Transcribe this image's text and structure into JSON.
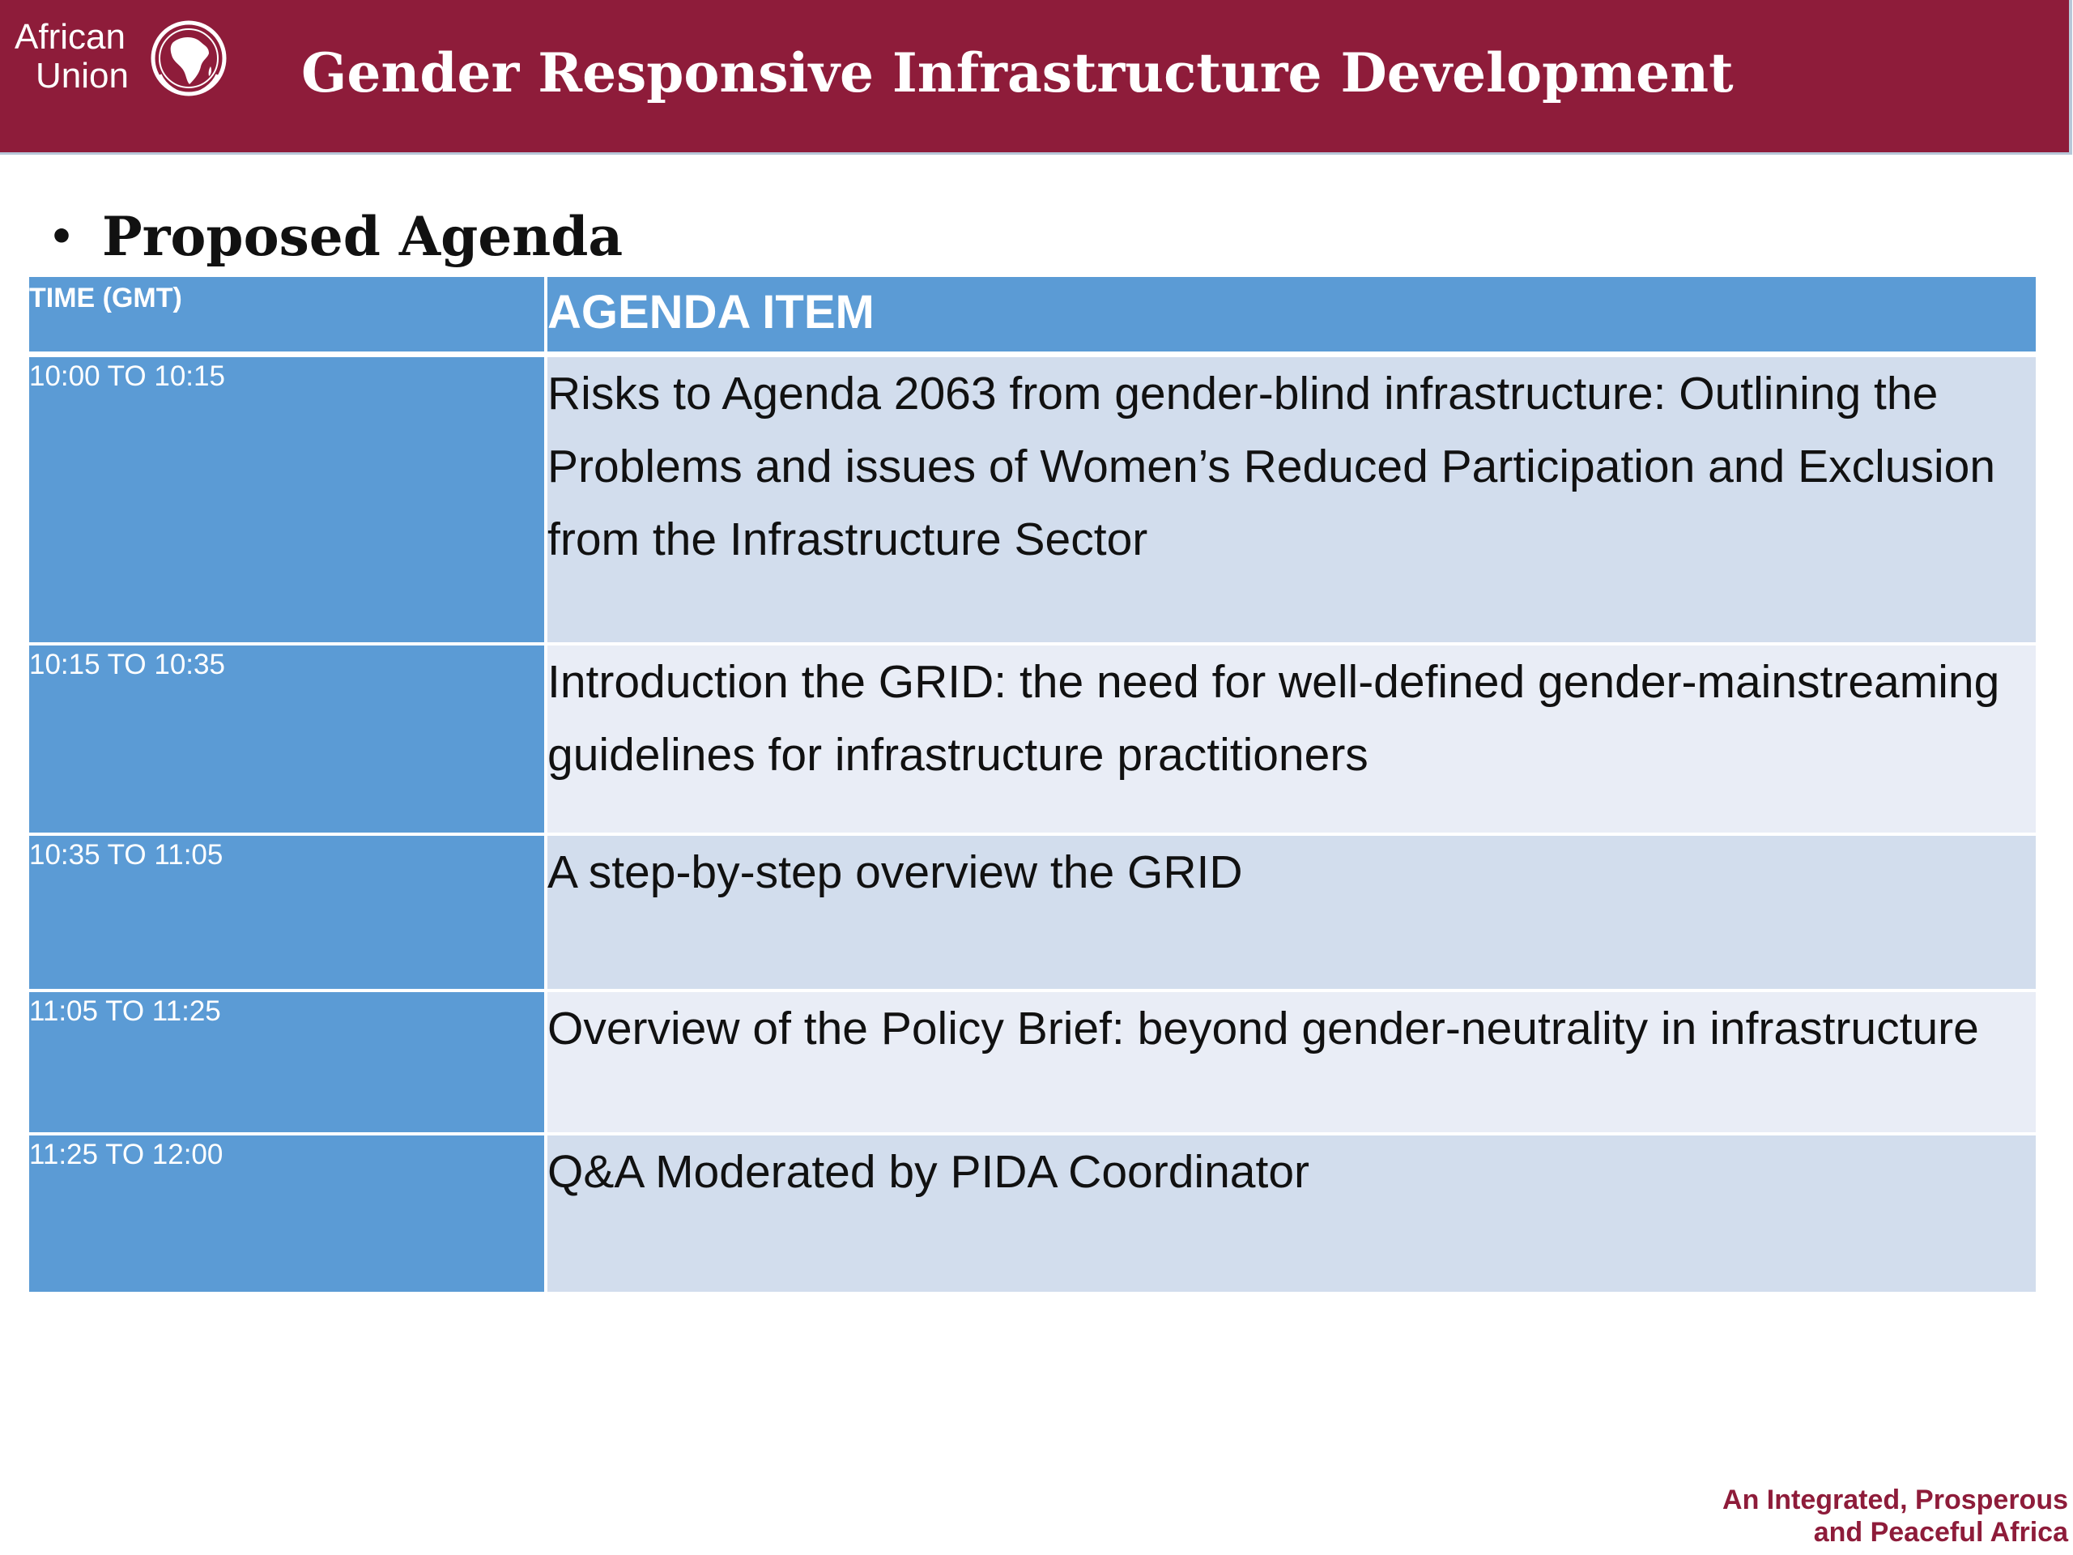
{
  "logo": {
    "line1": "African",
    "line2": "Union",
    "emblem": "africa-globe-icon"
  },
  "header": {
    "title": "Gender Responsive Infrastructure Development"
  },
  "section": {
    "bullet": "•",
    "heading": "Proposed Agenda"
  },
  "agenda": {
    "columns": {
      "time": "TIME (GMT)",
      "item": "AGENDA ITEM"
    },
    "rows": [
      {
        "time": "10:00 TO 10:15",
        "item": "Risks to Agenda 2063 from gender-blind infrastructure: Outlining the Problems and issues of Women’s Reduced Participation and Exclusion from the Infrastructure Sector"
      },
      {
        "time": "10:15 TO 10:35",
        "item": "Introduction the GRID: the need for well-defined gender-mainstreaming guidelines for infrastructure practitioners"
      },
      {
        "time": "10:35 TO 11:05",
        "item": "A step-by-step overview the GRID"
      },
      {
        "time": "11:05 TO 11:25",
        "item": "Overview of the Policy Brief: beyond gender-neutrality in infrastructure"
      },
      {
        "time": "11:25 TO 12:00",
        "item": "Q&A Moderated by PIDA Coordinator"
      }
    ]
  },
  "footer": {
    "line1": "An Integrated, Prosperous",
    "line2": "and Peaceful Africa"
  },
  "colors": {
    "brand": "#8e1c3a",
    "table_header": "#5b9bd5",
    "row_dark": "#d2dded",
    "row_light": "#e9edf6"
  }
}
